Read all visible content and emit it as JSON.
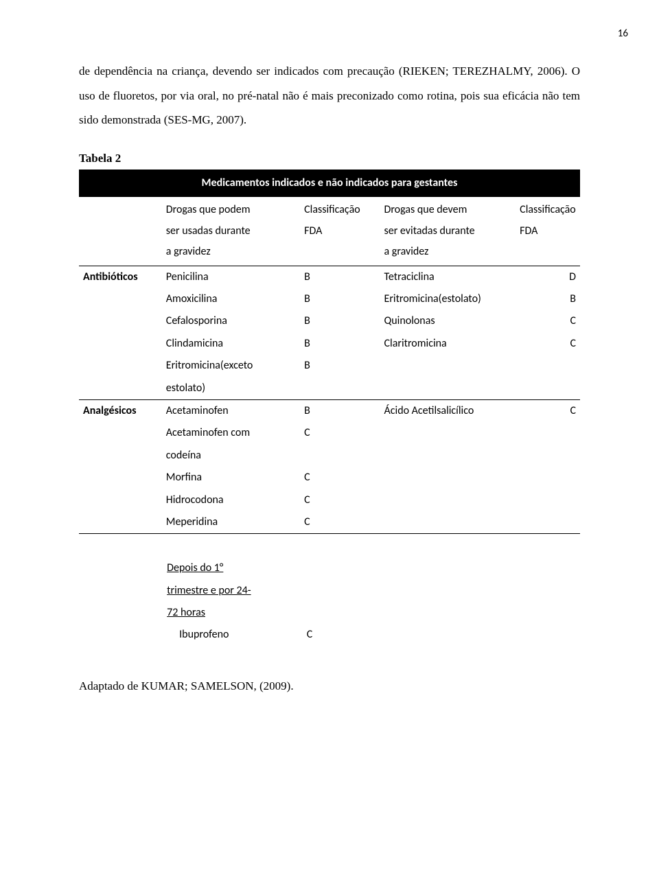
{
  "page_number": "16",
  "paragraph": "de dependência na criança, devendo ser indicados com precaução (RIEKEN; TEREZHALMY, 2006). O uso de fluoretos, por via oral, no pré-natal não é mais preconizado como rotina, pois sua eficácia não tem sido demonstrada (SES-MG, 2007).",
  "table": {
    "label": "Tabela 2",
    "title": "Medicamentos indicados e não indicados para gestantes",
    "headers": {
      "cat": "",
      "left_drug": "Drogas que podem ser usadas durante a gravidez",
      "left_class": "Classificação FDA",
      "right_drug": "Drogas que devem ser evitadas durante a gravidez",
      "right_class": "Classificação FDA"
    },
    "sections": [
      {
        "category": "Antibióticos",
        "rows": [
          {
            "l": "Penicilina",
            "lc": "B",
            "r": "Tetraciclina",
            "rc": "D"
          },
          {
            "l": "Amoxicilina",
            "lc": "B",
            "r": "Eritromicina(estolato)",
            "rc": "B"
          },
          {
            "l": "Cefalosporina",
            "lc": "B",
            "r": "Quinolonas",
            "rc": "C"
          },
          {
            "l": "Clindamicina",
            "lc": "B",
            "r": "Claritromicina",
            "rc": "C"
          },
          {
            "l": "Eritromicina(exceto",
            "lc": "B",
            "r": "",
            "rc": ""
          },
          {
            "l": "estolato)",
            "lc": "",
            "r": "",
            "rc": ""
          }
        ]
      },
      {
        "category": "Analgésicos",
        "rows": [
          {
            "l": "Acetaminofen",
            "lc": "B",
            "r": "Ácido Acetilsalicílico",
            "rc": "C"
          },
          {
            "l": "Acetaminofen com",
            "lc": "C",
            "r": "",
            "rc": ""
          },
          {
            "l": "codeína",
            "lc": "",
            "r": "",
            "rc": ""
          },
          {
            "l": "Morfina",
            "lc": "C",
            "r": "",
            "rc": ""
          },
          {
            "l": "Hidrocodona",
            "lc": "C",
            "r": "",
            "rc": ""
          },
          {
            "l": "Meperidina",
            "lc": "C",
            "r": "",
            "rc": ""
          }
        ]
      }
    ]
  },
  "after_note": {
    "line1": "Depois do 1°",
    "line2": "trimestre e por 24-",
    "line3": "72 horas",
    "drug": "Ibuprofeno",
    "cls": "C"
  },
  "source": "Adaptado de KUMAR; SAMELSON, (2009)."
}
